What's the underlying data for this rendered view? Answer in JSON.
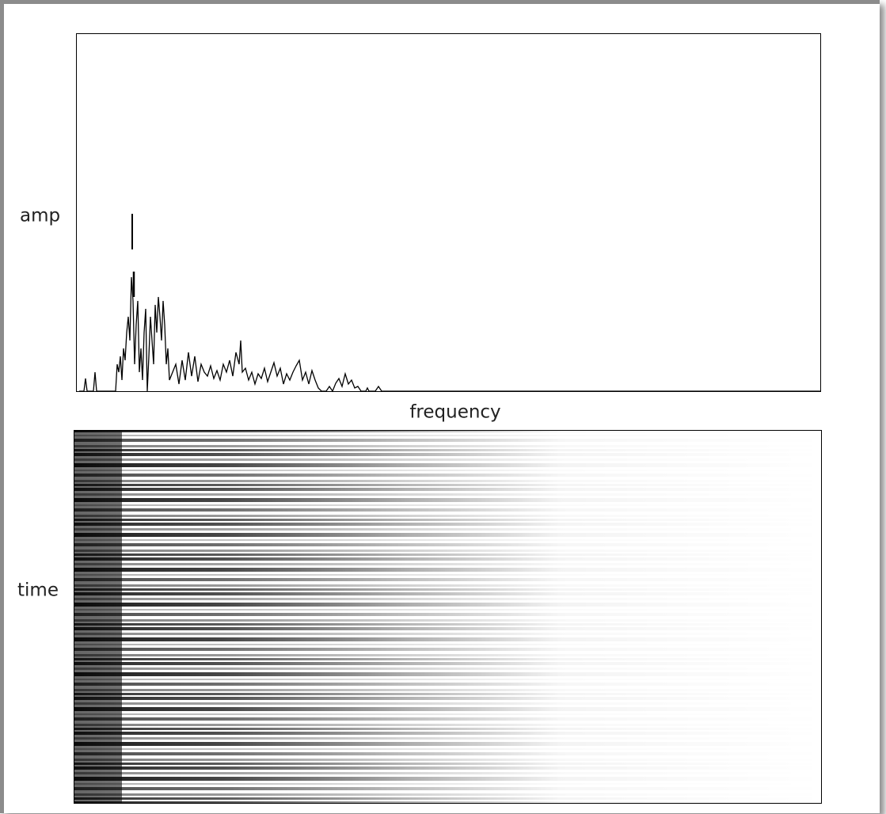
{
  "top_plot": {
    "y_label": "amp",
    "x_label": "frequency"
  },
  "bottom_plot": {
    "y_label": "time"
  }
}
